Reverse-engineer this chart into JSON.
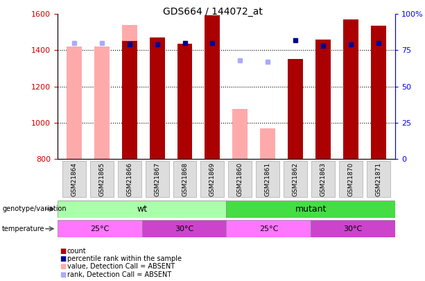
{
  "title": "GDS664 / 144072_at",
  "samples": [
    "GSM21864",
    "GSM21865",
    "GSM21866",
    "GSM21867",
    "GSM21868",
    "GSM21869",
    "GSM21860",
    "GSM21861",
    "GSM21862",
    "GSM21863",
    "GSM21870",
    "GSM21871"
  ],
  "count_values": [
    null,
    null,
    1450,
    1470,
    1435,
    1595,
    null,
    null,
    1350,
    1460,
    1570,
    1535
  ],
  "count_absent": [
    1420,
    1420,
    1540,
    null,
    null,
    null,
    1075,
    970,
    null,
    null,
    null,
    null
  ],
  "perc_present_right": [
    null,
    null,
    79,
    79,
    80,
    80,
    null,
    null,
    82,
    78,
    79,
    80
  ],
  "perc_absent_right": [
    80,
    80,
    null,
    null,
    null,
    null,
    68,
    67,
    null,
    null,
    null,
    null
  ],
  "ylim_left": [
    800,
    1600
  ],
  "ylim_right": [
    0,
    100
  ],
  "yticks_left": [
    800,
    1000,
    1200,
    1400,
    1600
  ],
  "yticks_right": [
    0,
    25,
    50,
    75,
    100
  ],
  "ytick_right_labels": [
    "0",
    "25",
    "50",
    "75",
    "100%"
  ],
  "color_count": "#aa0000",
  "color_count_absent": "#ffaaaa",
  "color_percentile": "#000099",
  "color_percentile_absent": "#aaaaff",
  "genotype_wt_color": "#aaffaa",
  "genotype_mutant_color": "#44dd44",
  "temp_25_color": "#ff77ff",
  "temp_30_color": "#cc44cc",
  "legend_items": [
    {
      "label": "count",
      "color": "#aa0000"
    },
    {
      "label": "percentile rank within the sample",
      "color": "#000099"
    },
    {
      "label": "value, Detection Call = ABSENT",
      "color": "#ffaaaa"
    },
    {
      "label": "rank, Detection Call = ABSENT",
      "color": "#aaaaff"
    }
  ],
  "fig_width": 6.13,
  "fig_height": 4.05,
  "dpi": 100
}
